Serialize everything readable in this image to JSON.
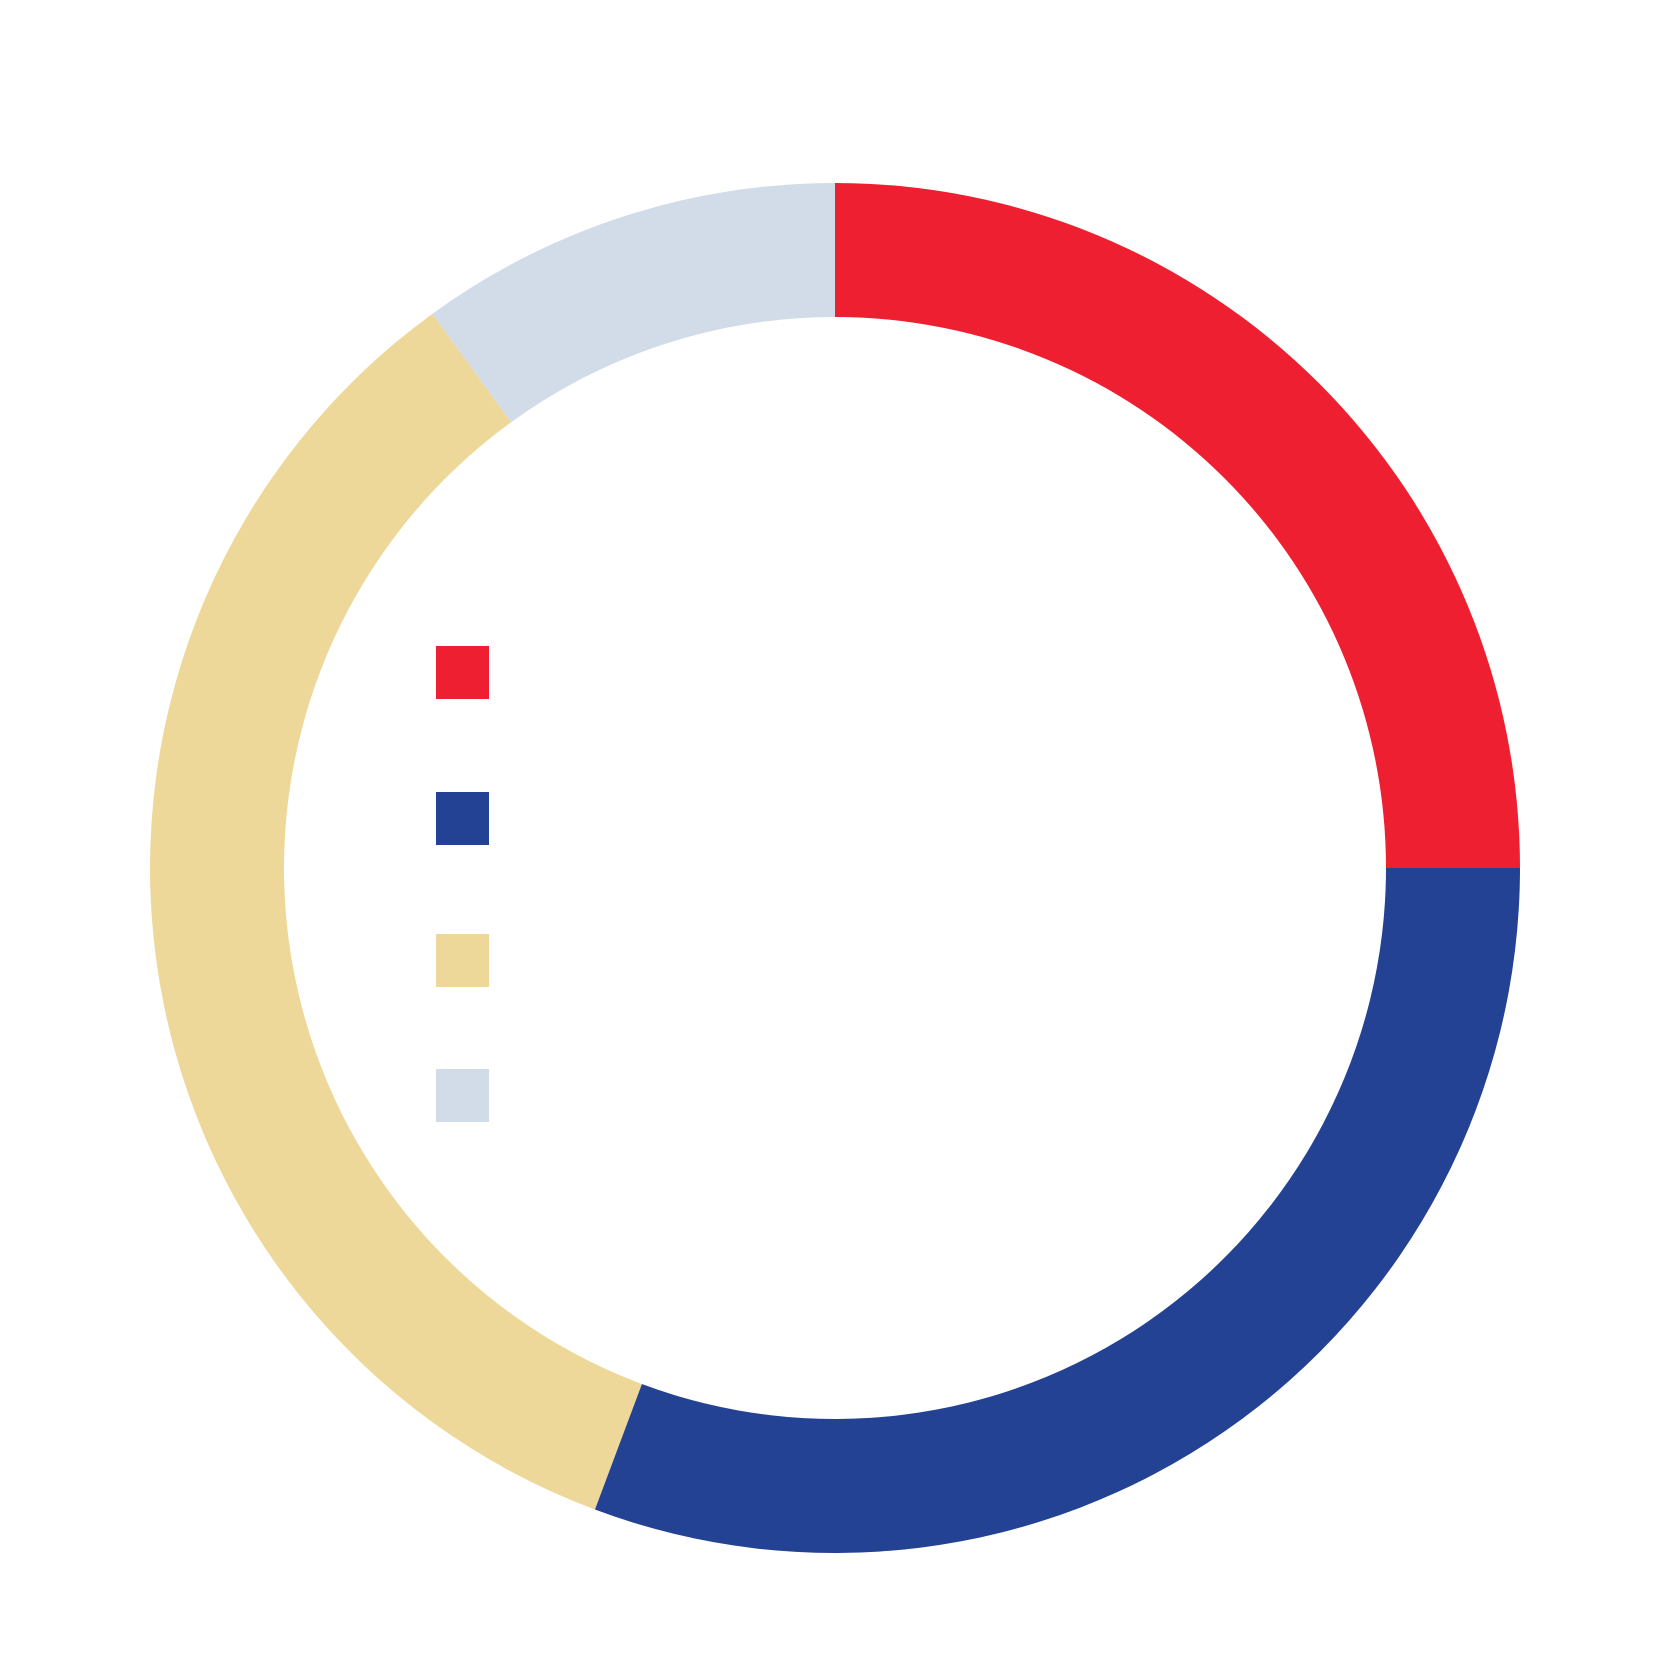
{
  "chart_data": {
    "type": "pie",
    "variant": "donut",
    "start_angle_deg": 0,
    "direction": "clockwise",
    "labels_printed": false,
    "slices": [
      {
        "value": 25.0,
        "color": "#ED1F30"
      },
      {
        "value": 30.7,
        "color": "#234294"
      },
      {
        "value": 34.3,
        "color": "#EED899"
      },
      {
        "value": 10.0,
        "color": "#D2DCE9"
      }
    ],
    "legend": {
      "placement": "inside-left",
      "items": [
        {
          "color": "#ED1F30"
        },
        {
          "color": "#234294"
        },
        {
          "color": "#EED899"
        },
        {
          "color": "#D2DCE9"
        }
      ]
    }
  }
}
